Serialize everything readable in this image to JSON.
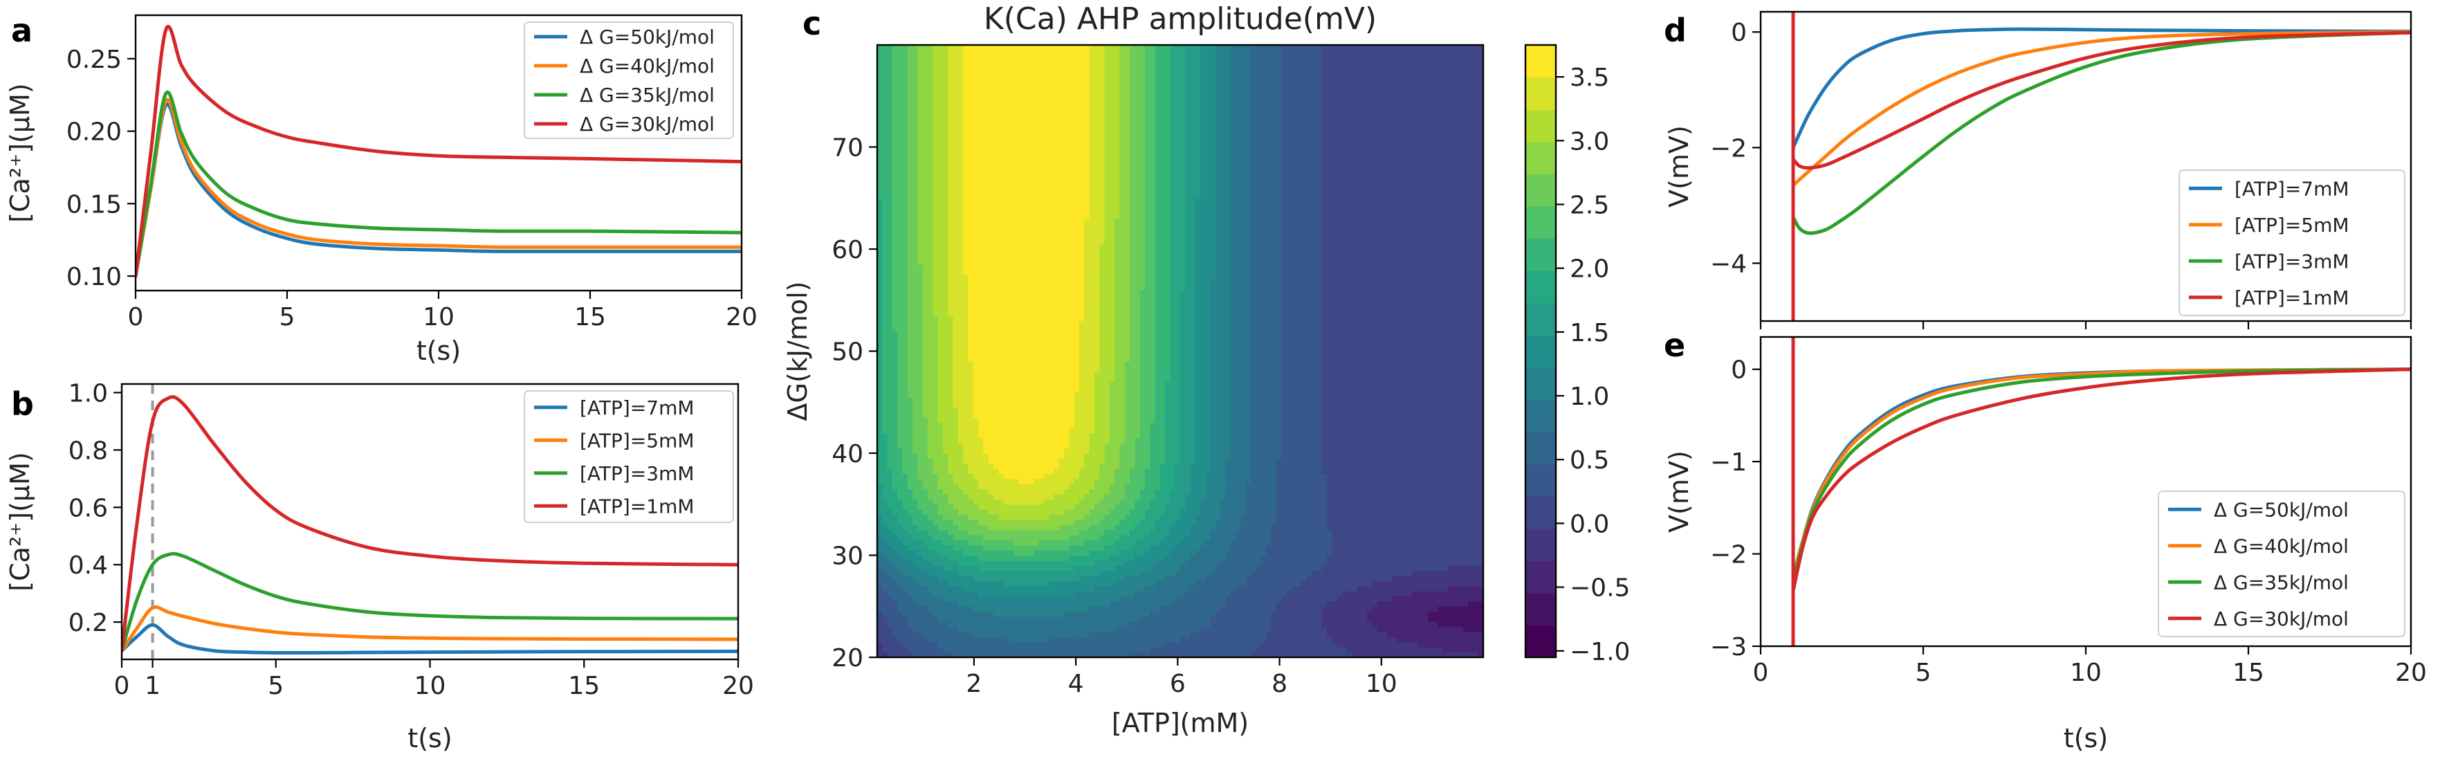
{
  "colors": {
    "blue": "#1f77b4",
    "orange": "#ff7f0e",
    "green": "#2ca02c",
    "red": "#d62728",
    "dashed_marker": "#999999"
  },
  "chart_data": [
    {
      "panel": "a",
      "type": "line",
      "title": "",
      "xlabel": "t(s)",
      "ylabel": "[Ca²⁺](μM)",
      "xlim": [
        0,
        20
      ],
      "ylim": [
        0.09,
        0.28
      ],
      "xticks": [
        0,
        5,
        10,
        15,
        20
      ],
      "yticks": [
        0.1,
        0.15,
        0.2,
        0.25
      ],
      "ytick_labels": [
        "0.10",
        "0.15",
        "0.20",
        "0.25"
      ],
      "legend": "top-right",
      "x": [
        0,
        0.5,
        1,
        1.5,
        2,
        3,
        4,
        5,
        6,
        8,
        10,
        12,
        15,
        20
      ],
      "series": [
        {
          "name": "Δ G=50kJ/mol",
          "color": "#1f77b4",
          "values": [
            0.1,
            0.16,
            0.218,
            0.19,
            0.168,
            0.145,
            0.133,
            0.126,
            0.122,
            0.119,
            0.118,
            0.117,
            0.117,
            0.117
          ]
        },
        {
          "name": "Δ G=40kJ/mol",
          "color": "#ff7f0e",
          "values": [
            0.1,
            0.16,
            0.221,
            0.193,
            0.171,
            0.148,
            0.136,
            0.129,
            0.125,
            0.122,
            0.121,
            0.12,
            0.12,
            0.12
          ]
        },
        {
          "name": "Δ G=35kJ/mol",
          "color": "#2ca02c",
          "values": [
            0.1,
            0.163,
            0.226,
            0.199,
            0.179,
            0.157,
            0.146,
            0.139,
            0.136,
            0.133,
            0.132,
            0.131,
            0.131,
            0.13
          ]
        },
        {
          "name": "Δ G=30kJ/mol",
          "color": "#d62728",
          "values": [
            0.1,
            0.185,
            0.27,
            0.246,
            0.231,
            0.213,
            0.203,
            0.196,
            0.192,
            0.186,
            0.183,
            0.182,
            0.181,
            0.179
          ]
        }
      ]
    },
    {
      "panel": "b",
      "type": "line",
      "title": "",
      "xlabel": "t(s)",
      "ylabel": "[Ca²⁺](μM)",
      "xlim": [
        0,
        20
      ],
      "ylim": [
        0.07,
        1.03
      ],
      "xticks": [
        0,
        1,
        5,
        10,
        15,
        20
      ],
      "yticks": [
        0.2,
        0.4,
        0.6,
        0.8,
        1.0
      ],
      "ytick_labels": [
        "0.2",
        "0.4",
        "0.6",
        "0.8",
        "1.0"
      ],
      "vline_x": 1,
      "legend": "top-right",
      "x": [
        0,
        0.5,
        1,
        1.5,
        2,
        3,
        4,
        5,
        6,
        8,
        10,
        12,
        15,
        20
      ],
      "series": [
        {
          "name": "[ATP]=7mM",
          "color": "#1f77b4",
          "values": [
            0.1,
            0.15,
            0.19,
            0.15,
            0.12,
            0.1,
            0.095,
            0.093,
            0.093,
            0.094,
            0.095,
            0.096,
            0.097,
            0.098
          ]
        },
        {
          "name": "[ATP]=5mM",
          "color": "#ff7f0e",
          "values": [
            0.1,
            0.18,
            0.25,
            0.235,
            0.22,
            0.195,
            0.178,
            0.165,
            0.157,
            0.148,
            0.144,
            0.142,
            0.141,
            0.14
          ]
        },
        {
          "name": "[ATP]=3mM",
          "color": "#2ca02c",
          "values": [
            0.1,
            0.28,
            0.4,
            0.435,
            0.43,
            0.38,
            0.33,
            0.29,
            0.265,
            0.235,
            0.222,
            0.216,
            0.213,
            0.212
          ]
        },
        {
          "name": "[ATP]=1mM",
          "color": "#d62728",
          "values": [
            0.1,
            0.55,
            0.9,
            0.98,
            0.96,
            0.82,
            0.69,
            0.59,
            0.53,
            0.46,
            0.43,
            0.415,
            0.405,
            0.4
          ]
        }
      ]
    },
    {
      "panel": "c",
      "type": "heatmap",
      "title": "K(Ca) AHP amplitude(mV)",
      "xlabel": "[ATP](mM)",
      "ylabel": "ΔG(kJ/mol)",
      "xlim": [
        0.1,
        12
      ],
      "ylim": [
        20,
        80
      ],
      "xticks": [
        2,
        4,
        6,
        8,
        10
      ],
      "yticks": [
        20,
        30,
        40,
        50,
        60,
        70
      ],
      "colorbar_ticks": [
        -1.0,
        -0.5,
        0.0,
        0.5,
        1.0,
        1.5,
        2.0,
        2.5,
        3.0,
        3.5
      ],
      "colorbar_labels": [
        "−1.0",
        "−0.5",
        "0.0",
        "0.5",
        "1.0",
        "1.5",
        "2.0",
        "2.5",
        "3.0",
        "3.5"
      ],
      "zlim": [
        -1.05,
        3.75
      ],
      "peak": {
        "atp": 3.0,
        "dg": 60,
        "value": 3.7
      },
      "minimum": {
        "atp": 11.5,
        "dg": 24,
        "value": -0.9
      }
    },
    {
      "panel": "d",
      "type": "line",
      "title": "",
      "xlabel": "",
      "ylabel": "V(mV)",
      "xlim": [
        0,
        20
      ],
      "ylim": [
        -5.0,
        0.35
      ],
      "xticks": [
        0,
        5,
        10,
        15,
        20
      ],
      "yticks": [
        0,
        -2,
        -4
      ],
      "ytick_labels": [
        "0",
        "−2",
        "−4"
      ],
      "legend": "bottom-right",
      "x": [
        1.0,
        1.2,
        1.5,
        2,
        2.5,
        3,
        4,
        5,
        6,
        7,
        8,
        10,
        12,
        15,
        20
      ],
      "series": [
        {
          "name": "[ATP]=7mM",
          "color": "#1f77b4",
          "values": [
            -2.0,
            -1.75,
            -1.4,
            -0.95,
            -0.62,
            -0.4,
            -0.15,
            -0.03,
            0.02,
            0.04,
            0.05,
            0.04,
            0.03,
            0.02,
            0.01
          ]
        },
        {
          "name": "[ATP]=5mM",
          "color": "#ff7f0e",
          "values": [
            -2.65,
            -2.55,
            -2.4,
            -2.15,
            -1.9,
            -1.68,
            -1.3,
            -0.98,
            -0.72,
            -0.52,
            -0.37,
            -0.18,
            -0.08,
            -0.03,
            0.0
          ]
        },
        {
          "name": "[ATP]=3mM",
          "color": "#2ca02c",
          "values": [
            -3.2,
            -3.4,
            -3.48,
            -3.42,
            -3.25,
            -3.05,
            -2.6,
            -2.15,
            -1.72,
            -1.35,
            -1.05,
            -0.6,
            -0.32,
            -0.12,
            -0.01
          ]
        },
        {
          "name": "[ATP]=1mM",
          "color": "#d62728",
          "values": [
            -2.2,
            -2.32,
            -2.35,
            -2.3,
            -2.18,
            -2.05,
            -1.78,
            -1.5,
            -1.22,
            -0.98,
            -0.78,
            -0.45,
            -0.24,
            -0.09,
            -0.01
          ]
        }
      ]
    },
    {
      "panel": "e",
      "type": "line",
      "title": "",
      "xlabel": "t(s)",
      "ylabel": "V(mV)",
      "xlim": [
        0,
        20
      ],
      "ylim": [
        -3.0,
        0.35
      ],
      "xticks": [
        0,
        5,
        10,
        15,
        20
      ],
      "yticks": [
        0,
        -1,
        -2,
        -3
      ],
      "ytick_labels": [
        "0",
        "−1",
        "−2",
        "−3"
      ],
      "legend": "bottom-right",
      "x": [
        1.0,
        1.3,
        1.6,
        2,
        2.5,
        3,
        4,
        5,
        6,
        8,
        10,
        12,
        15,
        20
      ],
      "series": [
        {
          "name": "Δ G=50kJ/mol",
          "color": "#1f77b4",
          "values": [
            -2.25,
            -1.85,
            -1.5,
            -1.2,
            -0.92,
            -0.72,
            -0.45,
            -0.28,
            -0.18,
            -0.08,
            -0.04,
            -0.02,
            -0.01,
            0.0
          ]
        },
        {
          "name": "Δ G=40kJ/mol",
          "color": "#ff7f0e",
          "values": [
            -2.25,
            -1.85,
            -1.52,
            -1.22,
            -0.95,
            -0.75,
            -0.48,
            -0.31,
            -0.2,
            -0.09,
            -0.05,
            -0.02,
            -0.01,
            0.0
          ]
        },
        {
          "name": "Δ G=35kJ/mol",
          "color": "#2ca02c",
          "values": [
            -2.3,
            -1.88,
            -1.55,
            -1.28,
            -1.02,
            -0.83,
            -0.56,
            -0.38,
            -0.27,
            -0.14,
            -0.08,
            -0.05,
            -0.02,
            0.0
          ]
        },
        {
          "name": "Δ G=30kJ/mol",
          "color": "#d62728",
          "values": [
            -2.4,
            -1.92,
            -1.6,
            -1.38,
            -1.17,
            -1.02,
            -0.8,
            -0.63,
            -0.5,
            -0.32,
            -0.2,
            -0.12,
            -0.05,
            0.0
          ]
        }
      ]
    }
  ]
}
